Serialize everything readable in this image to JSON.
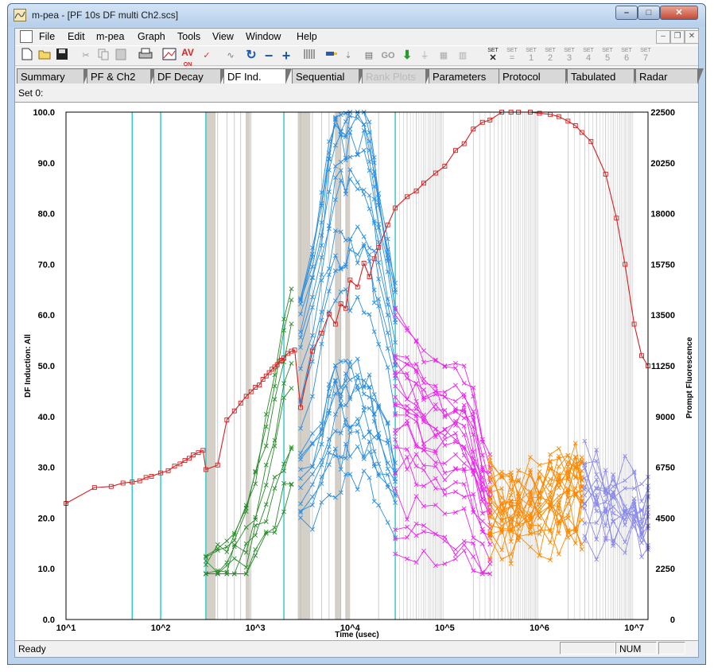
{
  "window": {
    "title": "m-pea - [PF 10s DF multi Ch2.scs]",
    "minimize": "–",
    "maximize": "□",
    "close": "✕"
  },
  "menubar": {
    "items": [
      "File",
      "Edit",
      "m-pea",
      "Graph",
      "Tools",
      "View",
      "Window",
      "Help"
    ],
    "mdi_minimize": "–",
    "mdi_restore": "❐",
    "mdi_close": "✕"
  },
  "toolbar": {
    "av_label": "AV",
    "av_sub": "ON",
    "go_label": "GO",
    "set_label": "SET",
    "set_items": [
      "=",
      "1",
      "2",
      "3",
      "4",
      "5",
      "6",
      "7"
    ]
  },
  "tabs": [
    {
      "label": "Summary",
      "active": false,
      "disabled": false
    },
    {
      "label": "PF & Ch2",
      "active": false,
      "disabled": false
    },
    {
      "label": "DF Decay",
      "active": false,
      "disabled": false
    },
    {
      "label": "DF Ind.",
      "active": true,
      "disabled": false
    },
    {
      "label": "Sequential",
      "active": false,
      "disabled": false
    },
    {
      "label": "Rank Plots",
      "active": false,
      "disabled": true
    },
    {
      "label": "Parameters",
      "active": false,
      "disabled": false
    },
    {
      "label": "Protocol",
      "active": false,
      "disabled": false
    },
    {
      "label": "Tabulated",
      "active": false,
      "disabled": false
    },
    {
      "label": "Radar",
      "active": false,
      "disabled": false
    }
  ],
  "set_label": "Set 0:",
  "chart_data": {
    "type": "line",
    "xlabel": "Time (usec)",
    "ylabel": "DF Induction: All",
    "y2label": "Prompt Fluorescence",
    "x_scale": "log",
    "xlim": [
      10,
      14000000
    ],
    "ylim": [
      0,
      100
    ],
    "y2lim": [
      0,
      22500
    ],
    "x_ticks": [
      {
        "value": 10,
        "label": "10^1"
      },
      {
        "value": 100,
        "label": "10^2"
      },
      {
        "value": 1000,
        "label": "10^3"
      },
      {
        "value": 10000,
        "label": "10^4"
      },
      {
        "value": 100000,
        "label": "10^5"
      },
      {
        "value": 1000000,
        "label": "10^6"
      },
      {
        "value": 10000000,
        "label": "10^7"
      }
    ],
    "y_ticks": [
      "0.0",
      "10.0",
      "20.0",
      "30.0",
      "40.0",
      "50.0",
      "60.0",
      "70.0",
      "80.0",
      "90.0",
      "100.0"
    ],
    "y2_ticks": [
      "0",
      "2250",
      "4500",
      "6750",
      "9000",
      "11250",
      "13500",
      "15750",
      "18000",
      "20250",
      "22500"
    ],
    "cyan_lines": [
      50,
      100,
      300,
      2000,
      30000
    ],
    "gray_bands": [
      [
        300,
        380
      ],
      [
        800,
        880
      ],
      [
        2800,
        3800
      ],
      [
        7000,
        8000
      ],
      [
        9000,
        10000
      ]
    ],
    "colors": {
      "pf": "#d62020",
      "green": "#2a8a2a",
      "blue": "#2a8ee0",
      "magenta": "#ee22ee",
      "orange": "#ff8800",
      "lavender": "#8a8aee",
      "cyan": "#33cccc",
      "gray_band": "#d4d0c8"
    },
    "series": [
      {
        "name": "Prompt Fluorescence",
        "axis": "right",
        "marker": "square",
        "x": [
          10,
          20,
          30,
          40,
          50,
          60,
          70,
          80,
          100,
          120,
          140,
          160,
          180,
          200,
          220,
          250,
          280,
          300,
          400,
          500,
          600,
          700,
          800,
          900,
          1000,
          1100,
          1200,
          1300,
          1400,
          1500,
          1600,
          1700,
          1800,
          1900,
          2000,
          2200,
          2400,
          2600,
          3000,
          4000,
          5000,
          6000,
          7000,
          8000,
          9000,
          10000,
          12000,
          14000,
          16000,
          18000,
          20000,
          25000,
          30000,
          40000,
          50000,
          60000,
          80000,
          100000,
          130000,
          160000,
          200000,
          250000,
          300000,
          400000,
          500000,
          600000,
          800000,
          1000000,
          1300000,
          1600000,
          2000000,
          2400000,
          2800000,
          3500000,
          5000000,
          6500000,
          8000000,
          10000000,
          12000000,
          14000000
        ],
        "y": [
          5150,
          5850,
          5900,
          6050,
          6100,
          6150,
          6300,
          6350,
          6500,
          6600,
          6800,
          6900,
          7050,
          7150,
          7300,
          7400,
          7500,
          6650,
          6850,
          8850,
          9250,
          9600,
          9900,
          10100,
          10300,
          10400,
          10650,
          10800,
          10950,
          11100,
          11200,
          11300,
          11450,
          11500,
          11600,
          11800,
          11900,
          11950,
          9400,
          11900,
          12700,
          13550,
          13100,
          14000,
          13800,
          15050,
          14750,
          15800,
          15200,
          16000,
          16500,
          17500,
          18250,
          18750,
          19000,
          19350,
          19800,
          20100,
          20800,
          21100,
          21750,
          22050,
          22150,
          22500,
          22500,
          22500,
          22500,
          22450,
          22400,
          22300,
          22100,
          21900,
          21600,
          21200,
          19750,
          17800,
          15750,
          13100,
          11700,
          11250
        ]
      },
      {
        "name": "",
        "axis": "left",
        "marker": "x",
        "group": "green",
        "x": [
          300,
          400,
          500,
          600,
          800,
          1000,
          1300,
          1600,
          2000,
          2400
        ],
        "y": [
          12.5,
          14.0,
          15.5,
          17.0,
          22.0,
          29.0,
          38.0,
          46.0,
          57.0,
          63.0
        ]
      },
      {
        "name": "",
        "axis": "left",
        "marker": "x",
        "group": "blue",
        "x": [
          3000,
          4000,
          5000,
          6000,
          7000,
          8000,
          9000,
          10000,
          12000,
          14000,
          16000,
          18000,
          20000,
          25000,
          30000
        ],
        "y": [
          63.0,
          72.0,
          82.0,
          92.0,
          99.0,
          99.5,
          99.8,
          100.0,
          100.0,
          100.0,
          96.0,
          90.0,
          84.0,
          75.0,
          65.0
        ]
      },
      {
        "name": "",
        "axis": "left",
        "marker": "x",
        "group": "magenta",
        "x": [
          30000,
          40000,
          50000,
          60000,
          80000,
          100000,
          130000,
          160000,
          200000,
          250000,
          300000
        ],
        "y": [
          60.0,
          57.0,
          55.0,
          53.0,
          51.0,
          50.0,
          50.5,
          50.0,
          44.0,
          35.0,
          30.0
        ]
      },
      {
        "name": "",
        "axis": "left",
        "marker": "x",
        "group": "orange",
        "x": [
          300000,
          400000,
          500000,
          600000,
          800000,
          1000000,
          1300000,
          1600000,
          2000000,
          2400000,
          2800000
        ],
        "y": [
          29.0,
          27.5,
          27.0,
          27.0,
          28.0,
          28.5,
          29.5,
          30.5,
          31.0,
          32.0,
          33.5
        ]
      },
      {
        "name": "",
        "axis": "left",
        "marker": "x",
        "group": "lavender",
        "x": [
          3000000,
          4000000,
          5000000,
          6000000,
          8000000,
          10000000,
          12000000,
          14000000
        ],
        "y": [
          32.0,
          31.0,
          30.0,
          29.0,
          28.0,
          26.0,
          25.5,
          25.0
        ]
      }
    ]
  },
  "status": {
    "ready": "Ready",
    "num": "NUM"
  }
}
